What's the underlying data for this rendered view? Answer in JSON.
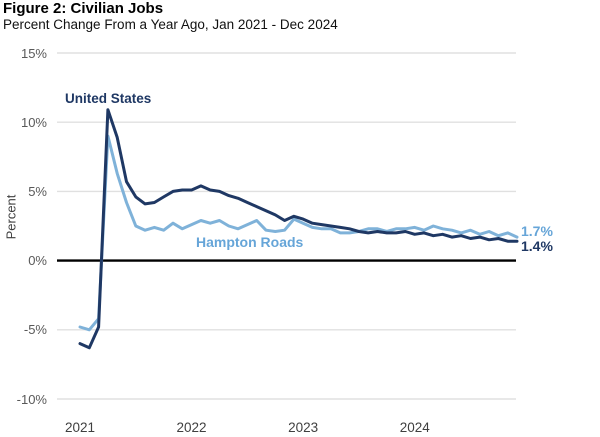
{
  "header": {
    "title": "Figure 2: Civilian Jobs",
    "subtitle": "Percent Change From a Year Ago, Jan 2021 - Dec 2024"
  },
  "chart_data": {
    "type": "line",
    "title": "Figure 2: Civilian Jobs",
    "subtitle": "Percent Change From a Year Ago, Jan 2021 - Dec 2024",
    "ylabel": "Percent",
    "xlabel": "",
    "ylim": [
      -10,
      15
    ],
    "grid": true,
    "zero_line": true,
    "legend_position": "inline-labels",
    "x_unit": "month",
    "x_range": "Jan 2021 - Dec 2024 (48 monthly points)",
    "yticks": [
      {
        "value": 15,
        "label": "15%"
      },
      {
        "value": 10,
        "label": "10%"
      },
      {
        "value": 5,
        "label": "5%"
      },
      {
        "value": 0,
        "label": "0%"
      },
      {
        "value": -5,
        "label": "-5%"
      },
      {
        "value": -10,
        "label": "-10%"
      }
    ],
    "xticks": [
      {
        "month_index": 0,
        "label": "2021"
      },
      {
        "month_index": 12,
        "label": "2022"
      },
      {
        "month_index": 24,
        "label": "2023"
      },
      {
        "month_index": 36,
        "label": "2024"
      }
    ],
    "series": [
      {
        "name": "Hampton Roads",
        "color": "#7FB2D9",
        "label_color": "#66A5D8",
        "end_label": "1.7%",
        "values": [
          -4.8,
          -5.0,
          -4.2,
          9.0,
          6.3,
          4.2,
          2.5,
          2.2,
          2.4,
          2.2,
          2.7,
          2.3,
          2.6,
          2.9,
          2.7,
          2.9,
          2.5,
          2.3,
          2.6,
          2.9,
          2.2,
          2.1,
          2.2,
          3.0,
          2.7,
          2.4,
          2.3,
          2.3,
          2.0,
          2.0,
          2.1,
          2.3,
          2.3,
          2.1,
          2.3,
          2.3,
          2.4,
          2.2,
          2.5,
          2.3,
          2.2,
          2.0,
          2.2,
          1.9,
          2.1,
          1.8,
          2.0,
          1.7
        ]
      },
      {
        "name": "United States",
        "color": "#1F3864",
        "label_color": "#1F3864",
        "end_label": "1.4%",
        "values": [
          -6.0,
          -6.3,
          -4.8,
          10.9,
          8.9,
          5.7,
          4.6,
          4.1,
          4.2,
          4.6,
          5.0,
          5.1,
          5.1,
          5.4,
          5.1,
          5.0,
          4.7,
          4.5,
          4.2,
          3.9,
          3.6,
          3.3,
          2.9,
          3.2,
          3.0,
          2.7,
          2.6,
          2.5,
          2.4,
          2.3,
          2.1,
          2.0,
          2.1,
          2.0,
          2.0,
          2.1,
          1.9,
          2.0,
          1.8,
          1.9,
          1.7,
          1.8,
          1.6,
          1.7,
          1.5,
          1.6,
          1.4,
          1.4
        ]
      }
    ],
    "colors": {
      "grid": "#e0e0e0",
      "zero_axis": "#000000",
      "tick_text": "#595959",
      "background": "#ffffff"
    }
  }
}
